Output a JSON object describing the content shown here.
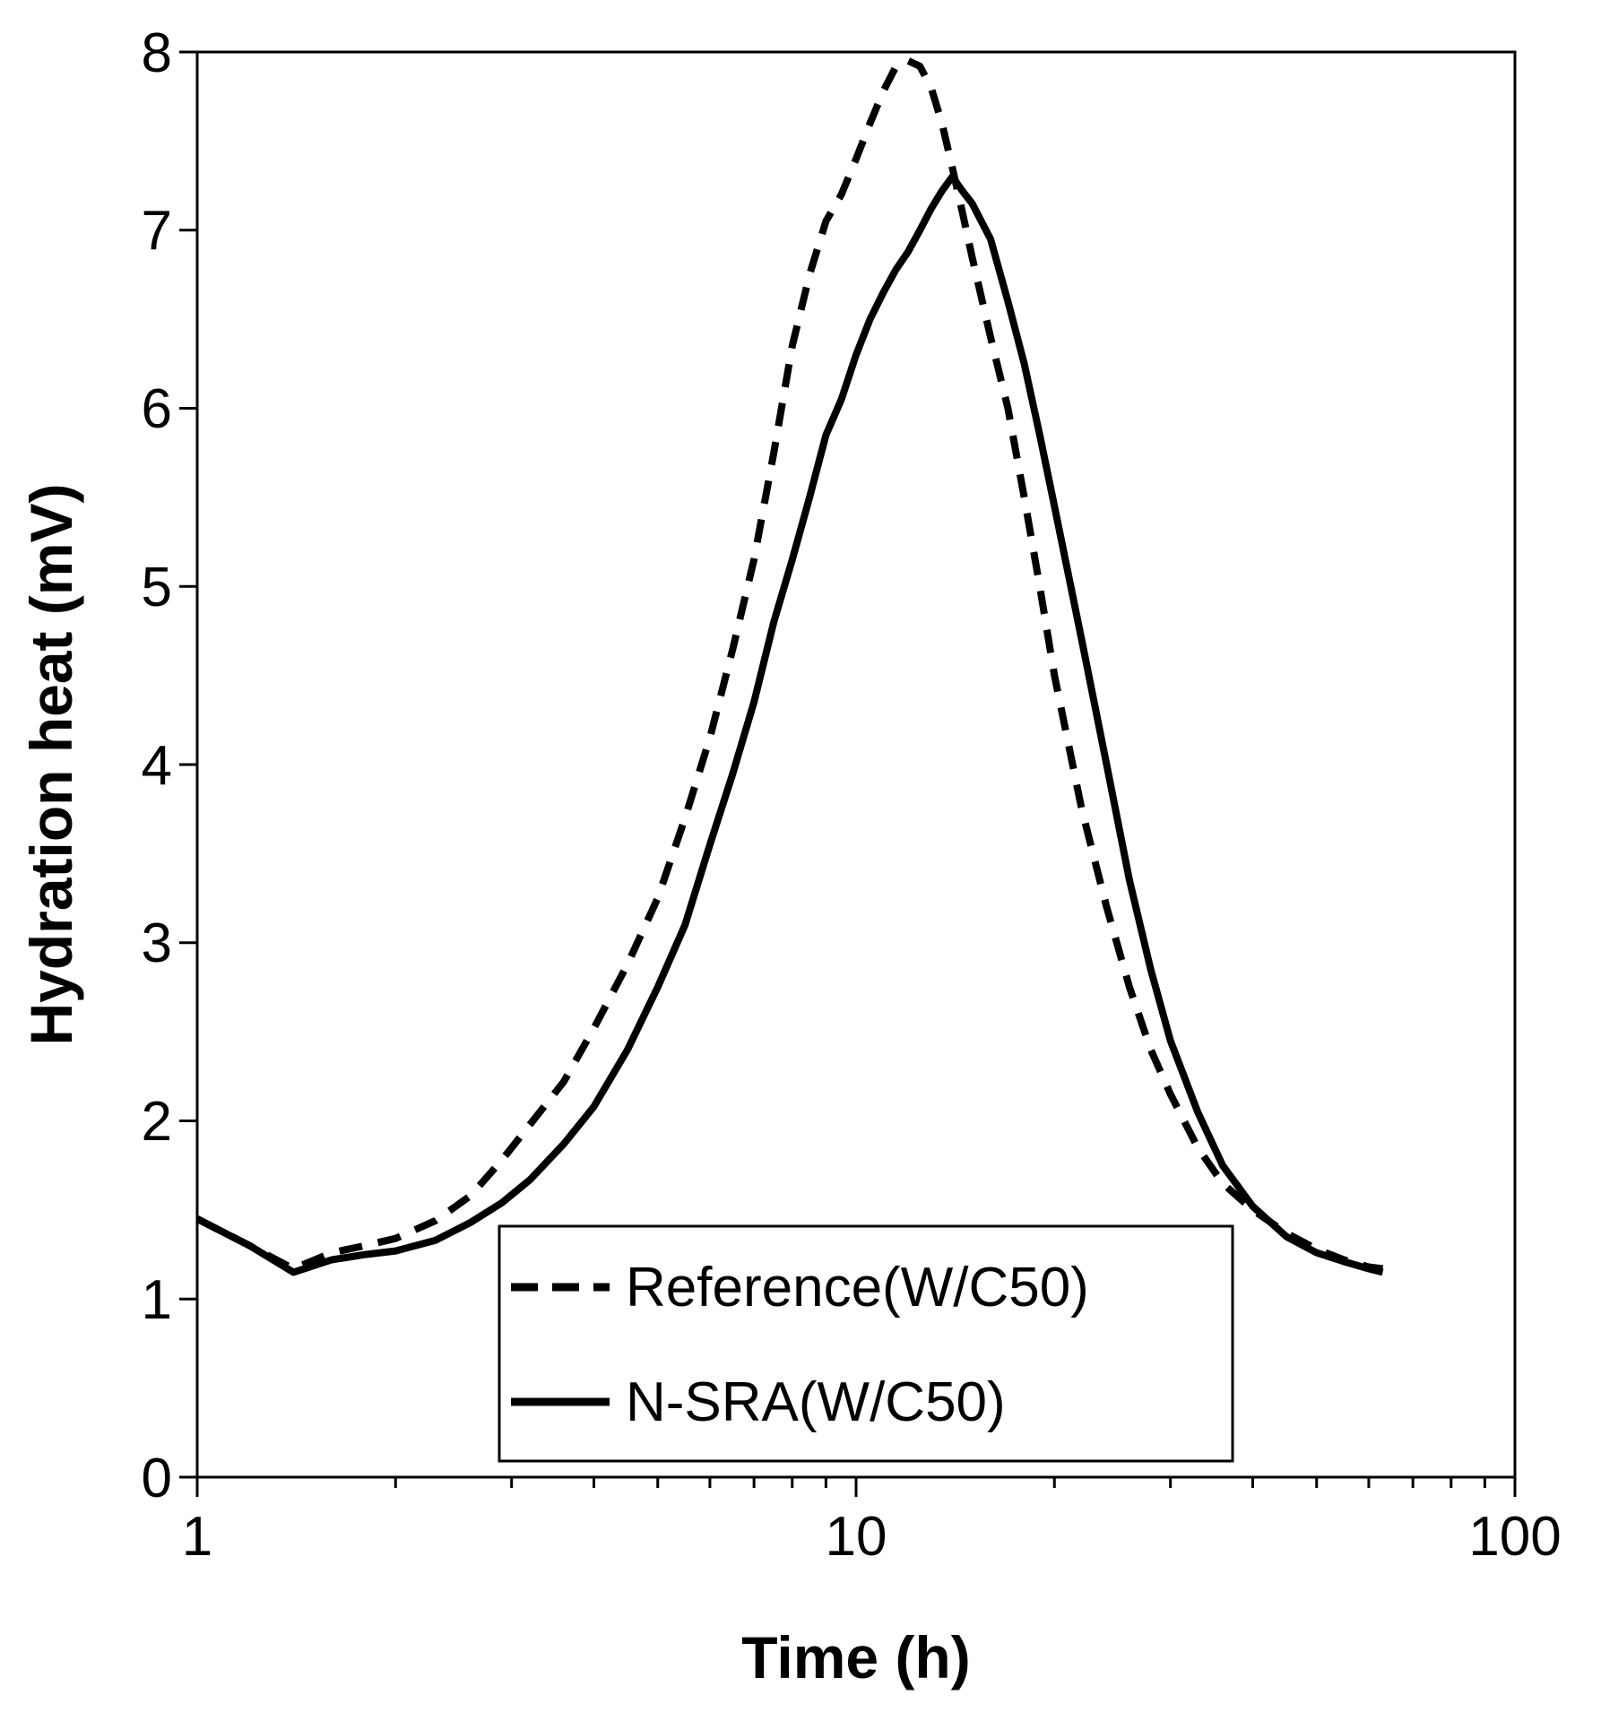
{
  "chart_data": {
    "type": "line",
    "xscale": "log",
    "xlim": [
      1,
      100
    ],
    "ylim": [
      0,
      8
    ],
    "xticks": [
      "1",
      "10",
      "100"
    ],
    "yticks": [
      "0",
      "1",
      "2",
      "3",
      "4",
      "5",
      "6",
      "7",
      "8"
    ],
    "xlabel": "Time (h)",
    "ylabel": "Hydration heat (mV)",
    "grid": false,
    "legend_position": "bottom-center",
    "series": [
      {
        "name": "Reference(W/C50)",
        "style": "dashed",
        "color": "#000000",
        "x": [
          1.0,
          1.2,
          1.4,
          1.6,
          1.8,
          2.0,
          2.3,
          2.6,
          2.9,
          3.2,
          3.6,
          4.0,
          4.5,
          5.0,
          5.5,
          6.0,
          6.5,
          7.0,
          7.5,
          8.0,
          8.5,
          9.0,
          9.5,
          10.0,
          10.5,
          11.0,
          11.5,
          12.0,
          12.5,
          13.0,
          13.5,
          14.0,
          14.5,
          15.0,
          16.0,
          17.0,
          18.0,
          19.0,
          20.0,
          22.0,
          24.0,
          26.0,
          28.0,
          30.0,
          33.0,
          36.0,
          40.0,
          45.0,
          50.0,
          55.0,
          60.0,
          63.0
        ],
        "y": [
          1.45,
          1.3,
          1.17,
          1.26,
          1.3,
          1.34,
          1.44,
          1.58,
          1.78,
          1.98,
          2.22,
          2.52,
          2.88,
          3.25,
          3.7,
          4.15,
          4.65,
          5.15,
          5.75,
          6.35,
          6.75,
          7.05,
          7.2,
          7.4,
          7.6,
          7.78,
          7.92,
          7.95,
          7.92,
          7.8,
          7.6,
          7.35,
          7.1,
          6.85,
          6.4,
          6.0,
          5.5,
          5.0,
          4.5,
          3.75,
          3.2,
          2.75,
          2.4,
          2.15,
          1.85,
          1.65,
          1.5,
          1.37,
          1.28,
          1.22,
          1.18,
          1.17
        ]
      },
      {
        "name": "N-SRA(W/C50)",
        "style": "solid",
        "color": "#000000",
        "x": [
          1.0,
          1.2,
          1.4,
          1.6,
          1.8,
          2.0,
          2.3,
          2.6,
          2.9,
          3.2,
          3.6,
          4.0,
          4.5,
          5.0,
          5.5,
          6.0,
          6.5,
          7.0,
          7.5,
          8.0,
          8.5,
          9.0,
          9.5,
          10.0,
          10.5,
          11.0,
          11.5,
          12.0,
          12.5,
          13.0,
          13.5,
          14.0,
          14.5,
          15.0,
          16.0,
          17.0,
          18.0,
          19.0,
          20.0,
          22.0,
          24.0,
          26.0,
          28.0,
          30.0,
          33.0,
          36.0,
          40.0,
          45.0,
          50.0,
          55.0,
          60.0,
          63.0
        ],
        "y": [
          1.45,
          1.3,
          1.15,
          1.22,
          1.25,
          1.27,
          1.33,
          1.43,
          1.54,
          1.67,
          1.87,
          2.08,
          2.4,
          2.75,
          3.1,
          3.55,
          3.95,
          4.35,
          4.8,
          5.15,
          5.5,
          5.85,
          6.05,
          6.3,
          6.5,
          6.65,
          6.78,
          6.88,
          7.0,
          7.12,
          7.22,
          7.3,
          7.22,
          7.15,
          6.95,
          6.6,
          6.25,
          5.85,
          5.45,
          4.7,
          4.0,
          3.35,
          2.85,
          2.45,
          2.05,
          1.75,
          1.52,
          1.35,
          1.26,
          1.21,
          1.17,
          1.15
        ]
      }
    ]
  }
}
